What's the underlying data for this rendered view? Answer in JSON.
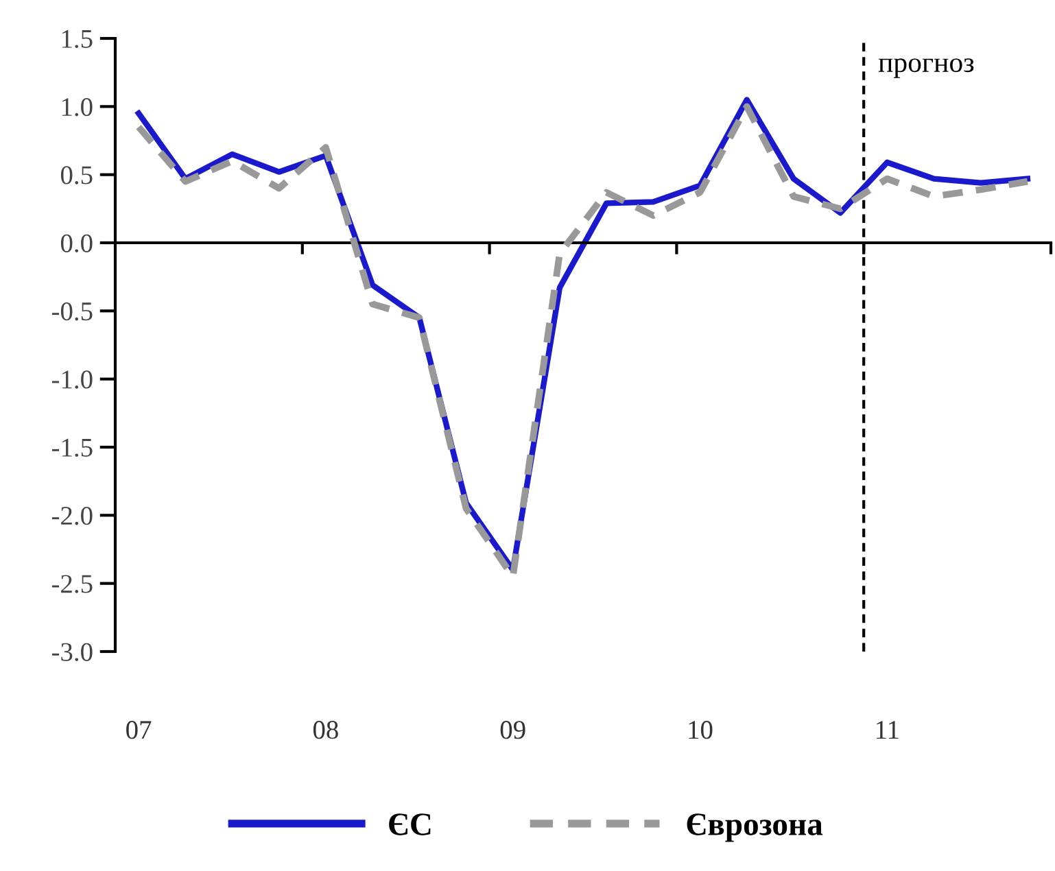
{
  "chart_data": {
    "type": "line",
    "categories": [
      "07",
      null,
      null,
      null,
      "08",
      null,
      null,
      null,
      "09",
      null,
      null,
      null,
      "10",
      null,
      null,
      null,
      "11",
      null,
      null,
      null
    ],
    "series": [
      {
        "name": "ЄС",
        "color": "#1a1acc",
        "line_style": "solid",
        "values": [
          0.95,
          0.47,
          0.65,
          0.52,
          0.64,
          -0.31,
          -0.55,
          -1.91,
          -2.4,
          -0.33,
          0.29,
          0.3,
          0.42,
          1.05,
          0.47,
          0.22,
          0.59,
          0.47,
          0.44,
          0.47
        ]
      },
      {
        "name": "Єврозона",
        "color": "#999999",
        "line_style": "dashed",
        "values": [
          0.85,
          0.45,
          0.6,
          0.4,
          0.7,
          -0.45,
          -0.55,
          -1.95,
          -2.45,
          -0.08,
          0.37,
          0.2,
          0.37,
          1.0,
          0.34,
          0.25,
          0.47,
          0.34,
          0.39,
          0.45
        ]
      }
    ],
    "ylim": [
      -3.0,
      1.5
    ],
    "yticks": [
      {
        "value": 1.5,
        "label": "1.5"
      },
      {
        "value": 1.0,
        "label": "1.0"
      },
      {
        "value": 0.5,
        "label": "0.5"
      },
      {
        "value": 0.0,
        "label": "0.0"
      },
      {
        "value": -0.5,
        "label": "-0.5"
      },
      {
        "value": -1.0,
        "label": "-1.0"
      },
      {
        "value": -1.5,
        "label": "-1.5"
      },
      {
        "value": -2.0,
        "label": "-2.0"
      },
      {
        "value": -2.5,
        "label": "-2.5"
      },
      {
        "value": -3.0,
        "label": "-3.0"
      }
    ],
    "ref_lines": [
      {
        "axis": "x",
        "value": "11",
        "label": "прогноз",
        "color": "#000000",
        "line_style": "dashed"
      }
    ],
    "legend": "bottom",
    "marker": "none"
  }
}
